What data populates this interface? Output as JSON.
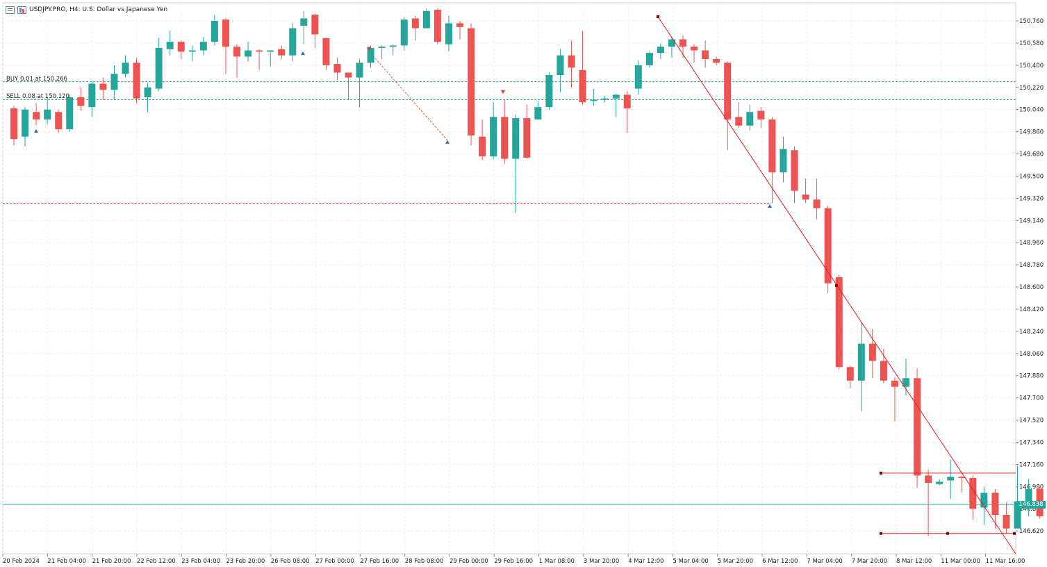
{
  "header": {
    "symbol_title": "USDJPY.PRO, H4:  U.S. Dollar vs Japanese Yen"
  },
  "orders": {
    "buy_label": "BUY 0.01 at 150.266",
    "sell_label": "SELL 0.08 at 150.120"
  },
  "current_price": "146.838",
  "colors": {
    "bull": "#26a69a",
    "bear": "#ef5350",
    "grid": "#eeeeee",
    "trend": "#e21b1b",
    "order_line": "#26a69a",
    "stop_line": "#e05a3a"
  },
  "chart_data": {
    "type": "candlestick",
    "symbol": "USDJPY.PRO",
    "timeframe": "H4",
    "ylim": [
      146.5,
      150.9
    ],
    "y_ticks": [
      "150.760",
      "150.580",
      "150.400",
      "150.220",
      "150.040",
      "149.860",
      "149.680",
      "149.500",
      "149.320",
      "149.140",
      "148.960",
      "148.780",
      "148.600",
      "148.420",
      "148.240",
      "148.060",
      "147.880",
      "147.700",
      "147.520",
      "147.340",
      "147.160",
      "146.980",
      "146.800",
      "146.620"
    ],
    "x_labels": [
      "20 Feb 2024",
      "21 Feb 04:00",
      "21 Feb 20:00",
      "22 Feb 12:00",
      "23 Feb 04:00",
      "23 Feb 20:00",
      "26 Feb 08:00",
      "27 Feb 00:00",
      "27 Feb 16:00",
      "28 Feb 08:00",
      "29 Feb 00:00",
      "29 Feb 16:00",
      "1 Mar 08:00",
      "3 Mar 20:00",
      "4 Mar 12:00",
      "5 Mar 04:00",
      "5 Mar 20:00",
      "6 Mar 12:00",
      "7 Mar 04:00",
      "7 Mar 20:00",
      "8 Mar 12:00",
      "11 Mar 00:00",
      "11 Mar 16:00"
    ],
    "candles": [
      [
        150.05,
        149.8,
        149.75,
        150.07
      ],
      [
        149.82,
        150.04,
        149.74,
        150.06
      ],
      [
        150.02,
        149.96,
        149.91,
        150.09
      ],
      [
        149.96,
        150.04,
        149.92,
        150.14
      ],
      [
        150.02,
        149.88,
        149.85,
        150.04
      ],
      [
        149.88,
        150.14,
        149.86,
        150.16
      ],
      [
        150.14,
        150.07,
        150.03,
        150.22
      ],
      [
        150.06,
        150.25,
        149.98,
        150.27
      ],
      [
        150.25,
        150.2,
        150.12,
        150.3
      ],
      [
        150.2,
        150.33,
        150.12,
        150.4
      ],
      [
        150.33,
        150.42,
        150.3,
        150.48
      ],
      [
        150.42,
        150.13,
        150.09,
        150.46
      ],
      [
        150.14,
        150.22,
        150.02,
        150.26
      ],
      [
        150.21,
        150.54,
        150.19,
        150.62
      ],
      [
        150.53,
        150.59,
        150.48,
        150.68
      ],
      [
        150.59,
        150.51,
        150.45,
        150.6
      ],
      [
        150.51,
        150.52,
        150.43,
        150.56
      ],
      [
        150.52,
        150.59,
        150.48,
        150.63
      ],
      [
        150.59,
        150.76,
        150.56,
        150.81
      ],
      [
        150.77,
        150.55,
        150.33,
        150.78
      ],
      [
        150.55,
        150.47,
        150.3,
        150.57
      ],
      [
        150.47,
        150.52,
        150.43,
        150.59
      ],
      [
        150.52,
        150.51,
        150.36,
        150.53
      ],
      [
        150.51,
        150.52,
        150.39,
        150.52
      ],
      [
        150.53,
        150.48,
        150.45,
        150.56
      ],
      [
        150.48,
        150.7,
        150.43,
        150.74
      ],
      [
        150.72,
        150.78,
        150.57,
        150.84
      ],
      [
        150.81,
        150.65,
        150.54,
        150.82
      ],
      [
        150.62,
        150.4,
        150.36,
        150.62
      ],
      [
        150.41,
        150.34,
        150.28,
        150.46
      ],
      [
        150.34,
        150.3,
        150.12,
        150.34
      ],
      [
        150.3,
        150.42,
        150.06,
        150.45
      ],
      [
        150.42,
        150.54,
        150.38,
        150.56
      ],
      [
        150.54,
        150.55,
        150.45,
        150.56
      ],
      [
        150.55,
        150.56,
        150.48,
        150.57
      ],
      [
        150.56,
        150.77,
        150.52,
        150.79
      ],
      [
        150.78,
        150.7,
        150.6,
        150.8
      ],
      [
        150.7,
        150.84,
        150.7,
        150.86
      ],
      [
        150.85,
        150.59,
        150.57,
        150.86
      ],
      [
        150.57,
        150.74,
        150.51,
        150.8
      ],
      [
        150.74,
        150.71,
        150.61,
        150.76
      ],
      [
        150.7,
        149.83,
        149.75,
        150.74
      ],
      [
        149.82,
        149.66,
        149.63,
        149.96
      ],
      [
        149.66,
        149.98,
        149.64,
        150.1
      ],
      [
        149.98,
        149.64,
        149.6,
        150.12
      ],
      [
        149.64,
        149.97,
        149.2,
        150.0
      ],
      [
        149.97,
        149.65,
        149.64,
        150.08
      ],
      [
        149.96,
        150.06,
        149.96,
        150.11
      ],
      [
        150.06,
        150.32,
        150.04,
        150.34
      ],
      [
        150.32,
        150.48,
        150.18,
        150.53
      ],
      [
        150.48,
        150.38,
        150.22,
        150.6
      ],
      [
        150.36,
        150.1,
        150.08,
        150.68
      ],
      [
        150.11,
        150.12,
        150.07,
        150.21
      ],
      [
        150.12,
        150.13,
        150.1,
        150.15
      ],
      [
        150.13,
        150.16,
        149.98,
        150.17
      ],
      [
        150.16,
        150.05,
        149.85,
        150.19
      ],
      [
        150.21,
        150.4,
        150.16,
        150.44
      ],
      [
        150.4,
        150.5,
        150.38,
        150.51
      ],
      [
        150.5,
        150.55,
        150.45,
        150.58
      ],
      [
        150.55,
        150.61,
        150.46,
        150.63
      ],
      [
        150.61,
        150.55,
        150.46,
        150.64
      ],
      [
        150.55,
        150.52,
        150.42,
        150.57
      ],
      [
        150.52,
        150.45,
        150.38,
        150.6
      ],
      [
        150.45,
        150.42,
        150.4,
        150.47
      ],
      [
        150.42,
        149.96,
        149.71,
        150.43
      ],
      [
        149.98,
        149.91,
        149.89,
        150.1
      ],
      [
        149.91,
        150.02,
        149.87,
        150.08
      ],
      [
        150.03,
        149.96,
        149.89,
        150.06
      ],
      [
        149.96,
        149.53,
        149.28,
        149.98
      ],
      [
        149.53,
        149.72,
        149.45,
        149.82
      ],
      [
        149.71,
        149.38,
        149.28,
        149.74
      ],
      [
        149.35,
        149.31,
        149.28,
        149.48
      ],
      [
        149.31,
        149.24,
        149.15,
        149.48
      ],
      [
        149.24,
        148.63,
        148.55,
        149.26
      ],
      [
        148.68,
        147.95,
        147.93,
        148.7
      ],
      [
        147.95,
        147.84,
        147.78,
        147.96
      ],
      [
        147.84,
        148.14,
        147.59,
        148.31
      ],
      [
        148.14,
        148.0,
        147.86,
        148.26
      ],
      [
        148.0,
        147.84,
        147.82,
        148.1
      ],
      [
        147.84,
        147.79,
        147.51,
        147.87
      ],
      [
        147.79,
        147.86,
        147.72,
        148.02
      ],
      [
        147.86,
        147.07,
        146.97,
        147.94
      ],
      [
        147.07,
        147.01,
        146.58,
        147.12
      ],
      [
        147.0,
        147.02,
        146.99,
        147.04
      ],
      [
        147.03,
        147.06,
        146.88,
        147.2
      ],
      [
        147.06,
        147.05,
        146.93,
        147.07
      ],
      [
        147.05,
        146.8,
        146.71,
        147.07
      ],
      [
        146.81,
        146.93,
        146.67,
        146.98
      ],
      [
        146.93,
        146.75,
        146.64,
        146.96
      ],
      [
        146.75,
        146.64,
        146.6,
        146.85
      ],
      [
        146.64,
        146.86,
        146.64,
        147.15
      ],
      [
        146.86,
        146.96,
        146.74,
        147.04
      ],
      [
        146.96,
        146.74,
        146.72,
        146.98
      ],
      [
        146.74,
        146.84,
        146.67,
        146.86
      ]
    ],
    "order_levels": [
      150.266,
      150.12
    ],
    "stop_level": 149.28,
    "bid": 146.838,
    "trendline": [
      [
        0,
        150.82
      ],
      [
        1,
        146.52
      ]
    ],
    "box": {
      "top": 147.09,
      "bottom": 146.6
    }
  }
}
